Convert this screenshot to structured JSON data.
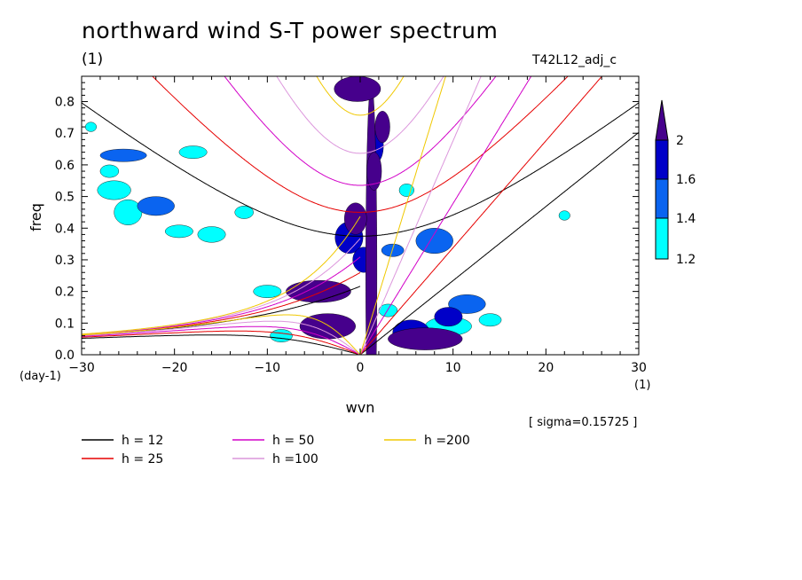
{
  "chart_data": {
    "type": "contour",
    "title": "northward wind S-T power spectrum",
    "unit_label": "(1)",
    "run_label": "T42L12_adj_c",
    "xlabel": "wvn",
    "ylabel": "freq",
    "x_unit": "(1)",
    "y_unit": "(day-1)",
    "xlim": [
      -30,
      30
    ],
    "ylim": [
      0,
      0.88
    ],
    "x_ticks": [
      -30,
      -20,
      -10,
      0,
      10,
      20,
      30
    ],
    "y_ticks": [
      0.0,
      0.1,
      0.2,
      0.3,
      0.4,
      0.5,
      0.6,
      0.7,
      0.8
    ],
    "y_tick_labels": [
      "0.0",
      "0.1",
      "0.2",
      "0.3",
      "0.4",
      "0.5",
      "0.6",
      "0.7",
      "0.8"
    ],
    "sigma_text": "[ sigma=0.15725 ]",
    "colorbar": {
      "levels": [
        1.2,
        1.4,
        1.6,
        2
      ],
      "labels": [
        "1.2",
        "1.4",
        "1.6",
        "2"
      ],
      "colors": [
        "#00ffff",
        "#0a64f0",
        "#0000c8",
        "#46008c"
      ]
    },
    "equivalent_depths": [
      {
        "name": "h = 12",
        "h": 12,
        "color": "#000000"
      },
      {
        "name": "h = 25",
        "h": 25,
        "color": "#e60000"
      },
      {
        "name": "h = 50",
        "h": 50,
        "color": "#d200c8"
      },
      {
        "name": "h =100",
        "h": 100,
        "color": "#dc96dc"
      },
      {
        "name": "h =200",
        "h": 200,
        "color": "#f0c800"
      }
    ],
    "power_regions": [
      {
        "level": 4,
        "cx": 1.2,
        "cy": 0.26,
        "rx": 0.6,
        "ry": 0.6
      },
      {
        "level": 4,
        "cx": 1.5,
        "cy": 0.58,
        "rx": 0.8,
        "ry": 0.06
      },
      {
        "level": 4,
        "cx": 2.4,
        "cy": 0.72,
        "rx": 0.8,
        "ry": 0.05
      },
      {
        "level": 4,
        "cx": -0.5,
        "cy": 0.43,
        "rx": 1.2,
        "ry": 0.05
      },
      {
        "level": 4,
        "cx": -0.3,
        "cy": 0.84,
        "rx": 2.5,
        "ry": 0.04
      },
      {
        "level": 4,
        "cx": -4.5,
        "cy": 0.2,
        "rx": 3.5,
        "ry": 0.035
      },
      {
        "level": 4,
        "cx": -3.5,
        "cy": 0.09,
        "rx": 3.0,
        "ry": 0.04
      },
      {
        "level": 4,
        "cx": 7.0,
        "cy": 0.05,
        "rx": 4.0,
        "ry": 0.035
      },
      {
        "level": 3,
        "cx": 1.8,
        "cy": 0.66,
        "rx": 0.7,
        "ry": 0.05
      },
      {
        "level": 3,
        "cx": -1.2,
        "cy": 0.37,
        "rx": 1.5,
        "ry": 0.05
      },
      {
        "level": 3,
        "cx": 0.4,
        "cy": 0.3,
        "rx": 1.2,
        "ry": 0.04
      },
      {
        "level": 3,
        "cx": 9.5,
        "cy": 0.12,
        "rx": 1.5,
        "ry": 0.03
      },
      {
        "level": 3,
        "cx": 5.5,
        "cy": 0.07,
        "rx": 2.0,
        "ry": 0.04
      },
      {
        "level": 2,
        "cx": -22.0,
        "cy": 0.47,
        "rx": 2.0,
        "ry": 0.03
      },
      {
        "level": 2,
        "cx": -25.5,
        "cy": 0.63,
        "rx": 2.5,
        "ry": 0.02
      },
      {
        "level": 2,
        "cx": 3.5,
        "cy": 0.33,
        "rx": 1.2,
        "ry": 0.02
      },
      {
        "level": 2,
        "cx": 8.0,
        "cy": 0.36,
        "rx": 2.0,
        "ry": 0.04
      },
      {
        "level": 2,
        "cx": 11.5,
        "cy": 0.16,
        "rx": 2.0,
        "ry": 0.03
      },
      {
        "level": 1,
        "cx": -26.5,
        "cy": 0.52,
        "rx": 1.8,
        "ry": 0.03
      },
      {
        "level": 1,
        "cx": -25.0,
        "cy": 0.45,
        "rx": 1.5,
        "ry": 0.04
      },
      {
        "level": 1,
        "cx": -19.5,
        "cy": 0.39,
        "rx": 1.5,
        "ry": 0.02
      },
      {
        "level": 1,
        "cx": -16.0,
        "cy": 0.38,
        "rx": 1.5,
        "ry": 0.025
      },
      {
        "level": 1,
        "cx": -12.5,
        "cy": 0.45,
        "rx": 1.0,
        "ry": 0.02
      },
      {
        "level": 1,
        "cx": -18.0,
        "cy": 0.64,
        "rx": 1.5,
        "ry": 0.02
      },
      {
        "level": 1,
        "cx": -27.0,
        "cy": 0.58,
        "rx": 1.0,
        "ry": 0.02
      },
      {
        "level": 1,
        "cx": -29.0,
        "cy": 0.72,
        "rx": 0.6,
        "ry": 0.015
      },
      {
        "level": 1,
        "cx": -10.0,
        "cy": 0.2,
        "rx": 1.5,
        "ry": 0.02
      },
      {
        "level": 1,
        "cx": 5.0,
        "cy": 0.52,
        "rx": 0.8,
        "ry": 0.02
      },
      {
        "level": 1,
        "cx": 9.5,
        "cy": 0.09,
        "rx": 2.5,
        "ry": 0.03
      },
      {
        "level": 1,
        "cx": 3.0,
        "cy": 0.14,
        "rx": 1.0,
        "ry": 0.02
      },
      {
        "level": 1,
        "cx": 14.0,
        "cy": 0.11,
        "rx": 1.2,
        "ry": 0.02
      },
      {
        "level": 1,
        "cx": -8.5,
        "cy": 0.06,
        "rx": 1.2,
        "ry": 0.02
      },
      {
        "level": 1,
        "cx": 22.0,
        "cy": 0.44,
        "rx": 0.6,
        "ry": 0.015
      }
    ]
  }
}
